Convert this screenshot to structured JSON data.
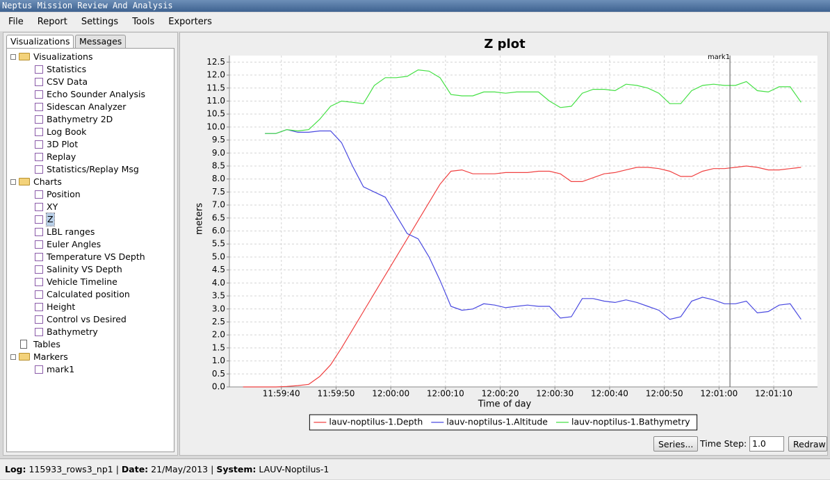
{
  "window": {
    "title": "Neptus Mission Review And Analysis"
  },
  "menu": [
    "File",
    "Report",
    "Settings",
    "Tools",
    "Exporters"
  ],
  "tabs": [
    "Visualizations",
    "Messages"
  ],
  "tree": [
    {
      "label": "Visualizations",
      "children": [
        {
          "label": "Statistics"
        },
        {
          "label": "CSV Data"
        },
        {
          "label": "Echo Sounder Analysis"
        },
        {
          "label": "Sidescan Analyzer"
        },
        {
          "label": "Bathymetry 2D"
        },
        {
          "label": "Log Book"
        },
        {
          "label": "3D Plot"
        },
        {
          "label": "Replay"
        },
        {
          "label": "Statistics/Replay Msg"
        }
      ]
    },
    {
      "label": "Charts",
      "children": [
        {
          "label": "Position"
        },
        {
          "label": "XY"
        },
        {
          "label": "Z",
          "selected": true
        },
        {
          "label": "LBL ranges"
        },
        {
          "label": "Euler Angles"
        },
        {
          "label": "Temperature VS Depth"
        },
        {
          "label": "Salinity VS Depth"
        },
        {
          "label": "Vehicle Timeline"
        },
        {
          "label": "Calculated position"
        },
        {
          "label": "Height"
        },
        {
          "label": "Control vs Desired"
        },
        {
          "label": "Bathymetry"
        }
      ]
    },
    {
      "label": "Tables"
    },
    {
      "label": "Markers",
      "children": [
        {
          "label": "mark1"
        }
      ]
    }
  ],
  "chart_data": {
    "type": "line",
    "title": "Z plot",
    "x_label": "Time of day",
    "y_label": "meters",
    "grid": true,
    "xlim": [
      43170.5,
      43278
    ],
    "xticks": [
      {
        "value": 43180,
        "label": "11:59:40"
      },
      {
        "value": 43190,
        "label": "11:59:50"
      },
      {
        "value": 43200,
        "label": "12:00:00"
      },
      {
        "value": 43210,
        "label": "12:00:10"
      },
      {
        "value": 43220,
        "label": "12:00:20"
      },
      {
        "value": 43230,
        "label": "12:00:30"
      },
      {
        "value": 43240,
        "label": "12:00:40"
      },
      {
        "value": 43250,
        "label": "12:00:50"
      },
      {
        "value": 43260,
        "label": "12:01:00"
      },
      {
        "value": 43270,
        "label": "12:01:10"
      }
    ],
    "ylim": [
      0,
      12.75
    ],
    "yticks": [
      {
        "value": 0,
        "label": "0.0"
      },
      0.5,
      {
        "value": 1,
        "label": "1.0"
      },
      1.5,
      {
        "value": 2,
        "label": "2.0"
      },
      2.5,
      {
        "value": 3,
        "label": "3.0"
      },
      3.5,
      {
        "value": 4,
        "label": "4.0"
      },
      4.5,
      {
        "value": 5,
        "label": "5.0"
      },
      5.5,
      {
        "value": 6,
        "label": "6.0"
      },
      6.5,
      {
        "value": 7,
        "label": "7.0"
      },
      7.5,
      {
        "value": 8,
        "label": "8.0"
      },
      8.5,
      {
        "value": 9,
        "label": "9.0"
      },
      9.5,
      {
        "value": 10,
        "label": "10.0"
      },
      10.5,
      {
        "value": 11,
        "label": "11.0"
      },
      11.5,
      {
        "value": 12,
        "label": "12.0"
      },
      12.5
    ],
    "x": [
      43173,
      43175,
      43177,
      43179,
      43181,
      43183,
      43185,
      43187,
      43189,
      43191,
      43193,
      43195,
      43197,
      43199,
      43201,
      43203,
      43205,
      43207,
      43209,
      43211,
      43213,
      43215,
      43217,
      43219,
      43221,
      43223,
      43225,
      43227,
      43229,
      43231,
      43233,
      43235,
      43237,
      43239,
      43241,
      43243,
      43245,
      43247,
      43249,
      43251,
      43253,
      43255,
      43257,
      43259,
      43261,
      43263,
      43265,
      43267,
      43269,
      43271,
      43273,
      43275
    ],
    "series": [
      {
        "name": "lauv-noptilus-1.Depth",
        "color": "#f04040",
        "values": [
          0,
          0,
          0,
          0,
          0.02,
          0.05,
          0.1,
          0.4,
          0.85,
          1.5,
          2.2,
          2.9,
          3.6,
          4.3,
          5.0,
          5.7,
          6.4,
          7.1,
          7.8,
          8.3,
          8.35,
          8.2,
          8.2,
          8.2,
          8.25,
          8.25,
          8.25,
          8.3,
          8.3,
          8.2,
          7.9,
          7.9,
          8.05,
          8.2,
          8.25,
          8.35,
          8.45,
          8.45,
          8.4,
          8.3,
          8.1,
          8.1,
          8.3,
          8.4,
          8.4,
          8.45,
          8.5,
          8.45,
          8.35,
          8.35,
          8.4,
          8.45
        ]
      },
      {
        "name": "lauv-noptilus-1.Altitude",
        "color": "#4848e0",
        "values": [
          null,
          null,
          9.75,
          9.75,
          9.9,
          9.8,
          9.8,
          9.85,
          9.85,
          9.4,
          8.5,
          7.7,
          7.5,
          7.3,
          6.6,
          5.9,
          5.7,
          5.0,
          4.1,
          3.1,
          2.95,
          3.0,
          3.2,
          3.15,
          3.05,
          3.1,
          3.15,
          3.1,
          3.1,
          2.65,
          2.7,
          3.4,
          3.4,
          3.3,
          3.25,
          3.35,
          3.25,
          3.1,
          2.95,
          2.6,
          2.7,
          3.3,
          3.45,
          3.35,
          3.2,
          3.2,
          3.3,
          2.85,
          2.9,
          3.15,
          3.2,
          2.6
        ]
      },
      {
        "name": "lauv-noptilus-1.Bathymetry",
        "color": "#44e044",
        "values": [
          null,
          null,
          9.75,
          9.75,
          9.9,
          9.85,
          9.9,
          10.3,
          10.8,
          11.0,
          10.95,
          10.9,
          11.6,
          11.9,
          11.9,
          11.95,
          12.2,
          12.15,
          11.9,
          11.25,
          11.2,
          11.2,
          11.35,
          11.35,
          11.3,
          11.35,
          11.35,
          11.35,
          11.0,
          10.75,
          10.8,
          11.3,
          11.45,
          11.45,
          11.4,
          11.65,
          11.6,
          11.5,
          11.3,
          10.9,
          10.9,
          11.4,
          11.6,
          11.65,
          11.6,
          11.6,
          11.75,
          11.4,
          11.35,
          11.55,
          11.55,
          10.95
        ]
      }
    ],
    "markers": [
      {
        "label": "mark1",
        "x": 43262
      }
    ]
  },
  "controls": {
    "series_button": "Series...",
    "time_step_label": "Time Step:",
    "time_step": "1.0",
    "redraw_button": "Redraw"
  },
  "status": {
    "log_label": "Log:",
    "log": "115933_rows3_np1",
    "separator": "|",
    "date_label": "Date:",
    "date": "21/May/2013",
    "system_label": "System:",
    "system": "LAUV-Noptilus-1"
  }
}
